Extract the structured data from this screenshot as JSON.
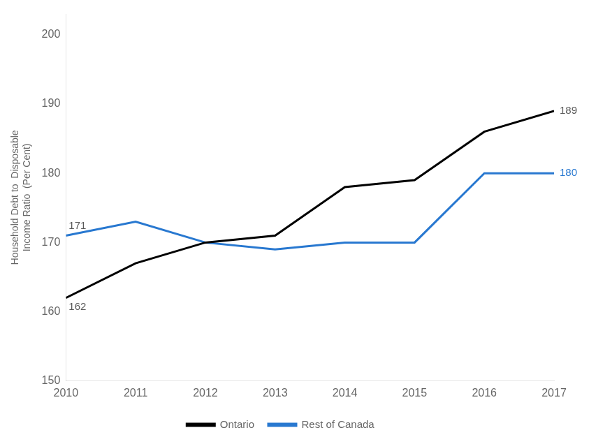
{
  "chart_data": {
    "type": "line",
    "y_label": [
      "Household Debt to  Disposable",
      "Income Ratio  (Per Cent)"
    ],
    "x": [
      2010,
      2011,
      2012,
      2013,
      2014,
      2015,
      2016,
      2017
    ],
    "series": [
      {
        "name": "Ontario",
        "color": "#000000",
        "values": [
          162,
          167,
          170,
          171,
          178,
          179,
          186,
          189
        ]
      },
      {
        "name": "Rest of Canada",
        "color": "#2878d0",
        "values": [
          171,
          173,
          170,
          169,
          170,
          170,
          180,
          180
        ]
      }
    ],
    "xlim": [
      2010,
      2017
    ],
    "xticks": [
      2010,
      2011,
      2012,
      2013,
      2014,
      2015,
      2016,
      2017
    ],
    "ylim": [
      150,
      203
    ],
    "yticks": [
      150,
      160,
      170,
      180,
      190,
      200
    ],
    "grid": false,
    "legend": "bottom",
    "annotations": [
      {
        "text": "162",
        "x": 2010,
        "y": 162,
        "color": "#595959"
      },
      {
        "text": "171",
        "x": 2010,
        "y": 171,
        "color": "#595959"
      },
      {
        "text": "189",
        "x": 2017,
        "y": 189,
        "color": "#595959"
      },
      {
        "text": "180",
        "x": 2017,
        "y": 180,
        "color": "#2878d0"
      }
    ]
  }
}
